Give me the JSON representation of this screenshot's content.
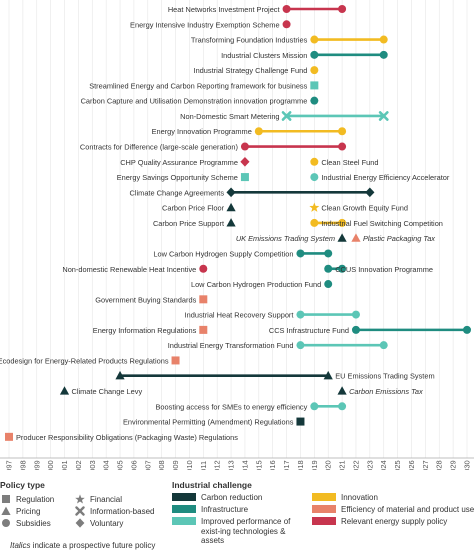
{
  "chart_data": {
    "type": "timeline",
    "x_axis": {
      "min": 1997,
      "max": 2030,
      "ticks": [
        1997,
        1998,
        1999,
        2000,
        2001,
        2002,
        2003,
        2004,
        2005,
        2006,
        2007,
        2008,
        2009,
        2010,
        2011,
        2012,
        2013,
        2014,
        2015,
        2016,
        2017,
        2018,
        2019,
        2020,
        2021,
        2022,
        2023,
        2024,
        2025,
        2026,
        2027,
        2028,
        2029,
        2030
      ]
    },
    "colors": {
      "carbon": "#14383a",
      "infrastructure": "#1f8c80",
      "improved": "#5cc6b6",
      "innovation": "#f2bb22",
      "efficiency": "#e8826a",
      "energy_supply": "#c7354e"
    },
    "rows": [
      {
        "items": [
          {
            "label": "Heat Networks Investment Project",
            "start": 2017,
            "end": 2021,
            "challenge": "energy_supply",
            "type": "subsidy",
            "label_side": "left"
          }
        ]
      },
      {
        "items": [
          {
            "label": "Energy Intensive Industry Exemption Scheme",
            "start": 2017,
            "challenge": "energy_supply",
            "type": "subsidy",
            "label_side": "left"
          }
        ]
      },
      {
        "items": [
          {
            "label": "Transforming Foundation Industries",
            "start": 2019,
            "end": 2024,
            "challenge": "innovation",
            "type": "subsidy",
            "label_side": "left"
          }
        ]
      },
      {
        "items": [
          {
            "label": "Industrial Clusters Mission",
            "start": 2019,
            "end": 2024,
            "challenge": "infrastructure",
            "type": "subsidy",
            "label_side": "left"
          }
        ]
      },
      {
        "items": [
          {
            "label": "Industrial Strategy Challenge Fund",
            "start": 2019,
            "challenge": "innovation",
            "type": "subsidy",
            "label_side": "left"
          }
        ]
      },
      {
        "items": [
          {
            "label": "Streamlined Energy and Carbon Reporting framework for business",
            "start": 2019,
            "challenge": "improved",
            "type": "regulation",
            "label_side": "left"
          }
        ]
      },
      {
        "items": [
          {
            "label": "Carbon Capture and Utilisation Demonstration innovation programme",
            "start": 2019,
            "challenge": "infrastructure",
            "type": "subsidy",
            "label_side": "left"
          }
        ]
      },
      {
        "items": [
          {
            "label": "Non-Domestic Smart Metering",
            "start": 2017,
            "end": 2024,
            "challenge": "improved",
            "type": "information",
            "label_side": "left"
          }
        ]
      },
      {
        "items": [
          {
            "label": "Energy Innovation Programme",
            "start": 2015,
            "end": 2021,
            "challenge": "innovation",
            "type": "subsidy",
            "label_side": "left"
          }
        ]
      },
      {
        "items": [
          {
            "label": "Contracts for Difference (large-scale generation)",
            "start": 2014,
            "end": 2021,
            "challenge": "energy_supply",
            "type": "subsidy",
            "label_side": "left"
          }
        ]
      },
      {
        "items": [
          {
            "label": "CHP Quality Assurance Programme",
            "start": 2014,
            "challenge": "energy_supply",
            "type": "voluntary",
            "label_side": "left"
          },
          {
            "label": "Clean Steel Fund",
            "start": 2019,
            "challenge": "innovation",
            "type": "subsidy",
            "label_side": "right"
          }
        ]
      },
      {
        "items": [
          {
            "label": "Energy Savings Opportunity Scheme",
            "start": 2014,
            "challenge": "improved",
            "type": "regulation",
            "label_side": "left"
          },
          {
            "label": "Industrial Energy Efficiency Accelerator",
            "start": 2019,
            "challenge": "improved",
            "type": "subsidy",
            "label_side": "right"
          }
        ]
      },
      {
        "items": [
          {
            "label": "Climate Change Agreements",
            "start": 2013,
            "end": 2023,
            "challenge": "carbon",
            "type": "voluntary",
            "label_side": "left"
          }
        ]
      },
      {
        "items": [
          {
            "label": "Carbon Price Floor",
            "start": 2013,
            "challenge": "carbon",
            "type": "pricing",
            "label_side": "left"
          },
          {
            "label": "Clean Growth Equity Fund",
            "start": 2019,
            "challenge": "innovation",
            "type": "financial",
            "label_side": "right"
          }
        ]
      },
      {
        "items": [
          {
            "label": "Carbon Price Support",
            "start": 2013,
            "challenge": "carbon",
            "type": "pricing",
            "label_side": "left"
          },
          {
            "label": "Industrial Fuel Switching Competition",
            "start": 2019,
            "end": 2021,
            "challenge": "innovation",
            "type": "subsidy",
            "label_side": "right"
          }
        ]
      },
      {
        "items": [
          {
            "label": "UK Emissions Trading System",
            "start": 2021,
            "challenge": "carbon",
            "type": "pricing",
            "label_side": "left",
            "future": true
          },
          {
            "label": "Plastic Packaging Tax",
            "start": 2022,
            "challenge": "efficiency",
            "type": "pricing",
            "label_side": "right",
            "future": true
          }
        ]
      },
      {
        "items": [
          {
            "label": "Low Carbon Hydrogen Supply Competition",
            "start": 2018,
            "end": 2020,
            "challenge": "infrastructure",
            "type": "subsidy",
            "label_side": "left"
          }
        ]
      },
      {
        "items": [
          {
            "label": "Non-domestic Renewable Heat Incentive",
            "start": 2011,
            "challenge": "energy_supply",
            "type": "subsidy",
            "label_side": "left"
          },
          {
            "label": "CCUS Innovation Programme",
            "start": 2020,
            "end": 2021,
            "challenge": "infrastructure",
            "type": "subsidy",
            "label_side": "right"
          }
        ]
      },
      {
        "items": [
          {
            "label": "Low Carbon Hydrogen Production Fund",
            "start": 2020,
            "challenge": "infrastructure",
            "type": "subsidy",
            "label_side": "left"
          }
        ]
      },
      {
        "items": [
          {
            "label": "Government Buying Standards",
            "start": 2011,
            "challenge": "efficiency",
            "type": "regulation",
            "label_side": "left"
          }
        ]
      },
      {
        "items": [
          {
            "label": "Industrial Heat Recovery Support",
            "start": 2018,
            "end": 2022,
            "challenge": "improved",
            "type": "subsidy",
            "label_side": "left"
          }
        ]
      },
      {
        "items": [
          {
            "label": "Energy Information Regulations",
            "start": 2011,
            "challenge": "efficiency",
            "type": "regulation",
            "label_side": "left"
          },
          {
            "label": "CCS Infrastructure Fund",
            "start": 2022,
            "end": 2030,
            "challenge": "infrastructure",
            "type": "subsidy",
            "label_side": "left"
          }
        ]
      },
      {
        "items": [
          {
            "label": "Industrial Energy Transformation Fund",
            "start": 2018,
            "end": 2024,
            "challenge": "improved",
            "type": "subsidy",
            "label_side": "left"
          }
        ]
      },
      {
        "items": [
          {
            "label": "Ecodesign for Energy-Related Products Regulations",
            "start": 2009,
            "challenge": "efficiency",
            "type": "regulation",
            "label_side": "left"
          }
        ]
      },
      {
        "items": [
          {
            "label": "",
            "start": 2005,
            "end": 2020,
            "challenge": "carbon",
            "type": "pricing",
            "end_type": "pricing",
            "label_side": "none"
          },
          {
            "label": "EU Emissions Trading System",
            "start": 2020,
            "challenge": "carbon",
            "type": "none",
            "label_side": "right"
          }
        ]
      },
      {
        "items": [
          {
            "label": "Climate Change Levy",
            "start": 2001,
            "challenge": "carbon",
            "type": "pricing",
            "label_side": "right"
          },
          {
            "label": "Carbon Emissions Tax",
            "start": 2021,
            "challenge": "carbon",
            "type": "pricing",
            "label_side": "right",
            "future": true
          }
        ]
      },
      {
        "items": [
          {
            "label": "Boosting access for SMEs to energy efficiency",
            "start": 2019,
            "end": 2021,
            "challenge": "improved",
            "type": "subsidy",
            "label_side": "left"
          }
        ]
      },
      {
        "items": [
          {
            "label": "Environmental Permitting (Amendment) Regulations",
            "start": 2018,
            "challenge": "carbon",
            "type": "regulation",
            "label_side": "left"
          }
        ]
      },
      {
        "items": [
          {
            "label": "Producer Responsibility Obligations (Packaging Waste) Regulations",
            "start": 1997,
            "challenge": "efficiency",
            "type": "regulation",
            "label_side": "right"
          }
        ]
      }
    ]
  },
  "legend": {
    "policy_type_title": "Policy type",
    "policy_types": [
      {
        "label": "Regulation",
        "symbol": "regulation"
      },
      {
        "label": "Financial",
        "symbol": "financial"
      },
      {
        "label": "Pricing",
        "symbol": "pricing"
      },
      {
        "label": "Information-based",
        "symbol": "information"
      },
      {
        "label": "Subsidies",
        "symbol": "subsidy"
      },
      {
        "label": "Voluntary",
        "symbol": "voluntary"
      }
    ],
    "challenge_title": "Industrial challenge",
    "challenges": [
      {
        "label": "Carbon reduction",
        "key": "carbon"
      },
      {
        "label": "Innovation",
        "key": "innovation"
      },
      {
        "label": "Infrastructure",
        "key": "infrastructure"
      },
      {
        "label": "Efficiency of material and product use",
        "key": "efficiency"
      },
      {
        "label": "Improved performance of exist-ing technologies & assets",
        "key": "improved"
      },
      {
        "label": "Relevant energy supply policy",
        "key": "energy_supply"
      }
    ]
  },
  "footnote": {
    "italic_word": "Italics",
    "text": " indicate a prospective future policy"
  }
}
